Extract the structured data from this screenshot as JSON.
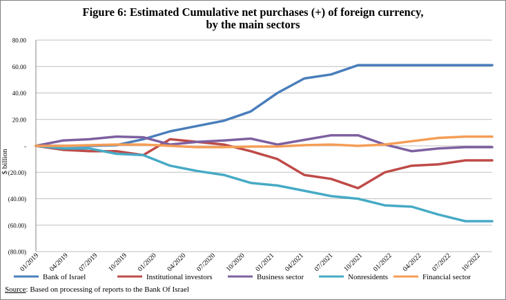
{
  "chart_data": {
    "type": "line",
    "title": "Figure 6:  Estimated Cumulative net purchases (+) of foreign currency,",
    "subtitle": "by the main sectors",
    "ylabel": "$ billion",
    "ylim": [
      -80,
      80
    ],
    "yticks": [
      80,
      60,
      40,
      20,
      0,
      -20,
      -40,
      -60,
      -80
    ],
    "ytick_labels": [
      "80.00",
      "60.00",
      "40.00",
      "20.00",
      "-",
      "(20.00)",
      "(40.00)",
      "(60.00)",
      "(80.00)"
    ],
    "x_tick_labels": [
      "01/2019",
      "04/2019",
      "07/2019",
      "10/2019",
      "01/2020",
      "04/2020",
      "07/2020",
      "10/2020",
      "01/2021",
      "04/2021",
      "07/2021",
      "10/2021",
      "01/2022",
      "04/2022",
      "07/2022",
      "10/2022"
    ],
    "legend_position": "bottom",
    "grid": "horizontal",
    "series": [
      {
        "name": "Bank of Israel",
        "color": "#4a7ebb",
        "values": [
          0,
          0,
          0,
          0.5,
          5,
          11,
          15,
          19,
          26,
          40,
          51,
          54,
          61,
          61,
          61,
          61,
          61,
          61
        ]
      },
      {
        "name": "Institutional investors",
        "color": "#be4b48",
        "values": [
          0,
          -3,
          -4,
          -4,
          -7,
          5,
          3,
          1,
          -4,
          -10,
          -22,
          -25,
          -32,
          -20,
          -15,
          -14,
          -11,
          -11
        ]
      },
      {
        "name": "Business sector",
        "color": "#7d60a0",
        "values": [
          0,
          4,
          5,
          7,
          6.5,
          1,
          3,
          4,
          5.5,
          1,
          4.5,
          8,
          8,
          1,
          -4,
          -2,
          -1,
          -1
        ]
      },
      {
        "name": "Nonresidents",
        "color": "#46aac5",
        "values": [
          0,
          -2,
          -2,
          -6,
          -7,
          -15,
          -19,
          -22,
          -28,
          -30,
          -34,
          -38,
          -40,
          -45,
          -46,
          -52,
          -57,
          -57
        ]
      },
      {
        "name": "Financial sector",
        "color": "#f59d56",
        "values": [
          0,
          0,
          0.5,
          1,
          1,
          0,
          -1,
          -1,
          -0.5,
          -0.5,
          0.5,
          1,
          0,
          1,
          3.5,
          6,
          7,
          7
        ]
      }
    ]
  },
  "source": {
    "label": "Source",
    "text": ":  Based on processing of reports to the Bank Of Israel"
  }
}
